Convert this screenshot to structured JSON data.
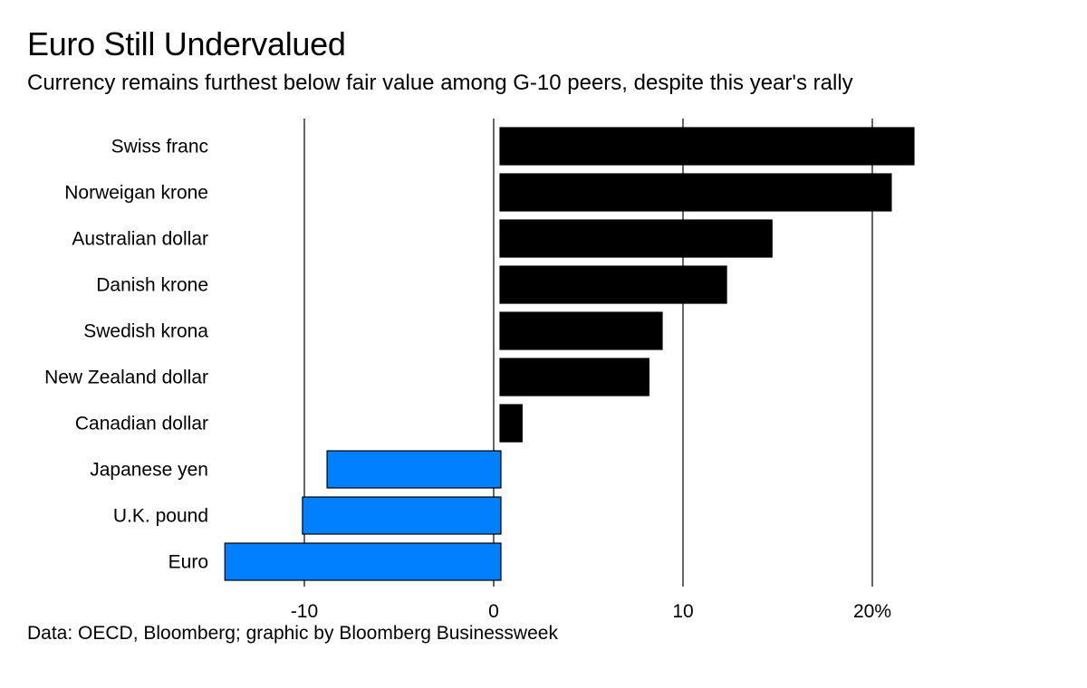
{
  "header": {
    "title": "Euro Still Undervalued",
    "subtitle": "Currency remains furthest below fair value among G-10 peers, despite this year's rally"
  },
  "footer": {
    "source": "Data: OECD, Bloomberg; graphic by Bloomberg Businessweek"
  },
  "colors": {
    "positive": "#000000",
    "negative": "#0080ff",
    "grid": "#000000"
  },
  "chart_data": {
    "type": "bar",
    "orientation": "horizontal",
    "title": "Euro Still Undervalued",
    "subtitle": "Currency remains furthest below fair value among G-10 peers, despite this year's rally",
    "xlabel": "",
    "ylabel": "",
    "xlim": [
      -14.5,
      22.5
    ],
    "grid": true,
    "categories": [
      "Swiss franc",
      "Norweigan krone",
      "Australian dollar",
      "Danish krone",
      "Swedish krona",
      "New Zealand dollar",
      "Canadian dollar",
      "Japanese yen",
      "U.K. pound",
      "Euro"
    ],
    "values": [
      22.2,
      21.0,
      14.7,
      12.3,
      8.9,
      8.2,
      1.5,
      -8.8,
      -10.1,
      -14.2
    ],
    "xticks": [
      -10,
      0,
      10,
      20
    ],
    "xtick_labels": [
      "-10",
      "0",
      "10",
      "20%"
    ]
  }
}
